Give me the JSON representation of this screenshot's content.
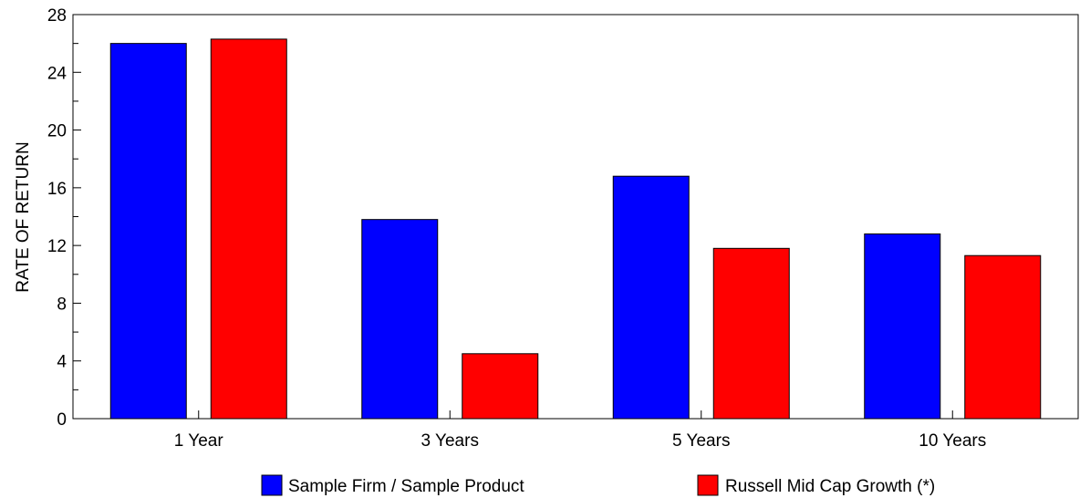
{
  "chart_data": {
    "type": "bar",
    "title": "",
    "xlabel": "",
    "ylabel": "RATE OF RETURN",
    "categories": [
      "1 Year",
      "3 Years",
      "5 Years",
      "10 Years"
    ],
    "ylim": [
      0,
      28
    ],
    "yticks": [
      0,
      4,
      8,
      12,
      16,
      20,
      24,
      28
    ],
    "grid": false,
    "legend_position": "bottom",
    "series": [
      {
        "name": "Sample Firm / Sample Product",
        "color": "#0000ff",
        "values": [
          26.0,
          13.8,
          16.8,
          12.8
        ]
      },
      {
        "name": "Russell Mid Cap Growth (*)",
        "color": "#ff0000",
        "values": [
          26.3,
          4.5,
          11.8,
          11.3
        ]
      }
    ]
  }
}
